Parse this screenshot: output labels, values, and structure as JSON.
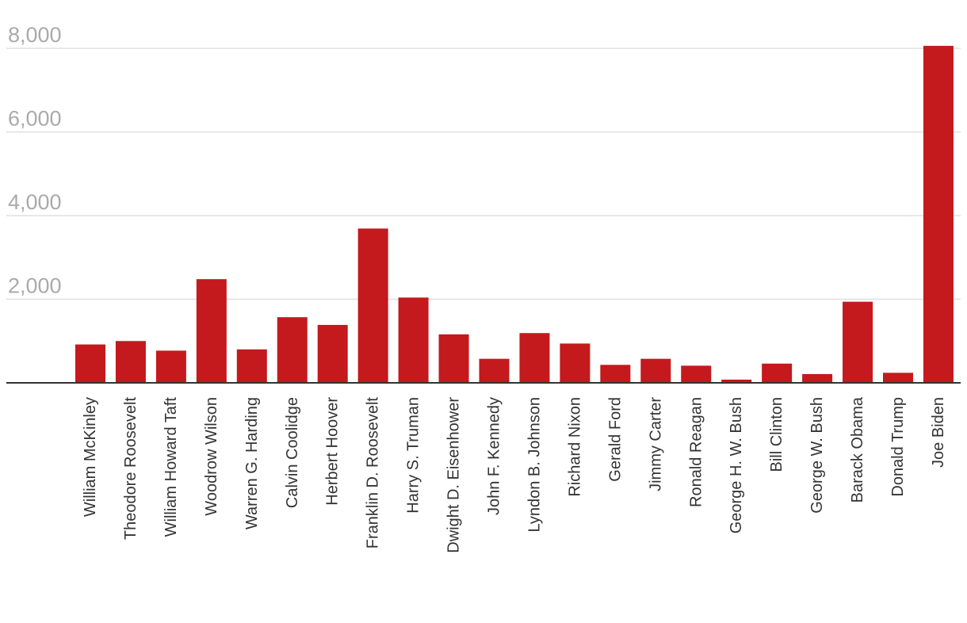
{
  "chart_data": {
    "type": "bar",
    "title": "",
    "xlabel": "",
    "ylabel": "",
    "ylim": [
      0,
      8000
    ],
    "yticks": [
      2000,
      4000,
      6000,
      8000
    ],
    "ytick_labels": [
      "2,000",
      "4,000",
      "6,000",
      "8,000"
    ],
    "grid": true,
    "bar_color": "#c4191d",
    "categories": [
      "William McKinley",
      "Theodore Roosevelt",
      "William Howard Taft",
      "Woodrow Wilson",
      "Warren G. Harding",
      "Calvin Coolidge",
      "Herbert Hoover",
      "Franklin D. Roosevelt",
      "Harry S. Truman",
      "Dwight D. Eisenhower",
      "John F. Kennedy",
      "Lyndon B. Johnson",
      "Richard Nixon",
      "Gerald Ford",
      "Jimmy Carter",
      "Ronald Reagan",
      "George H. W. Bush",
      "Bill Clinton",
      "George W. Bush",
      "Barack Obama",
      "Donald Trump",
      "Joe Biden"
    ],
    "values": [
      918,
      1000,
      770,
      2480,
      800,
      1570,
      1385,
      3690,
      2040,
      1160,
      575,
      1190,
      940,
      430,
      575,
      410,
      77,
      460,
      210,
      1940,
      240,
      8060
    ]
  }
}
